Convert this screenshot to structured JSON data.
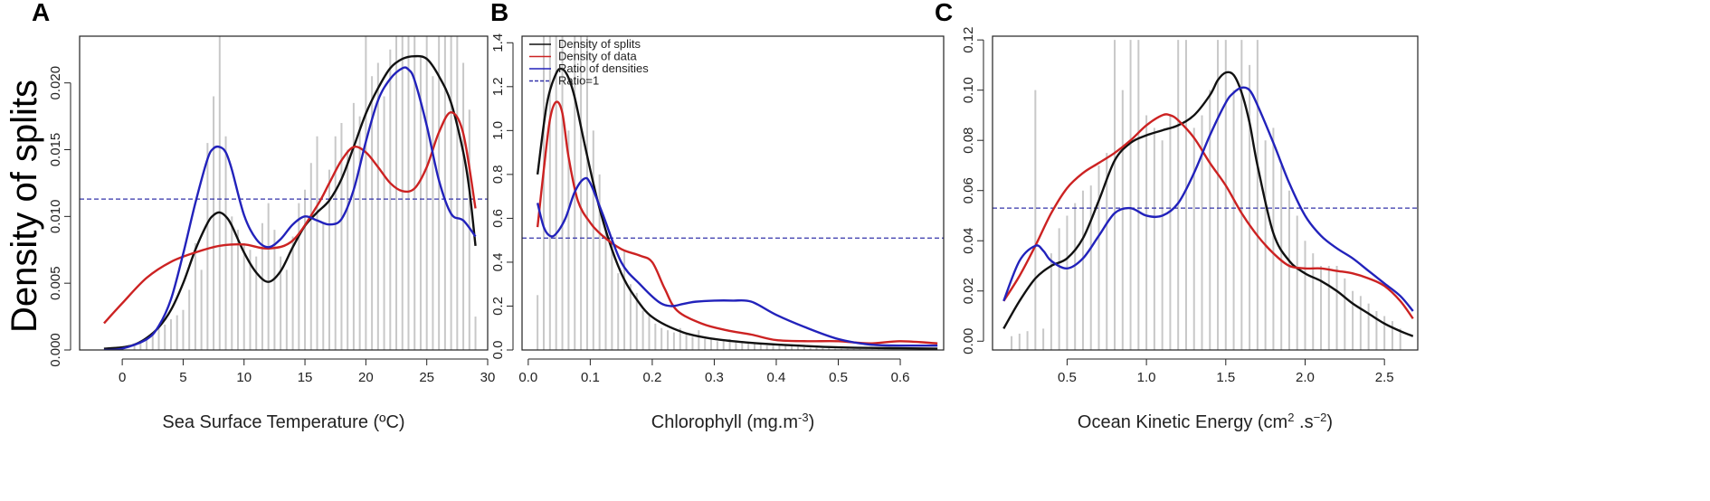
{
  "figure": {
    "ylabel": "Density of splits"
  },
  "colors": {
    "splits": "#111111",
    "data": "#cc2222",
    "ratio": "#2222bb",
    "ref": "#3333aa",
    "hist": "#c8c8c8"
  },
  "chart_data": [
    {
      "type": "line",
      "letter": "A",
      "title": "",
      "xlabel": "Sea Surface Temperature (ºC)",
      "ylabel": "Density of splits",
      "xlim": [
        -3.5,
        30
      ],
      "ylim": [
        0,
        0.0235
      ],
      "xticks": [
        0,
        5,
        10,
        15,
        20,
        25,
        30
      ],
      "xtick_labels": [
        "0",
        "5",
        "10",
        "15",
        "20",
        "25",
        "30"
      ],
      "yticks": [
        0,
        0.005,
        0.01,
        0.015,
        0.02
      ],
      "ytick_labels": [
        "0.000",
        "0.005",
        "0.010",
        "0.015",
        "0.020"
      ],
      "ratio_one_line": 0.0113,
      "histogram": {
        "x": [
          1,
          1.5,
          2,
          2.5,
          3,
          3.5,
          4,
          4.5,
          5,
          5.5,
          6,
          6.5,
          7,
          7.5,
          8,
          8.5,
          9,
          9.5,
          10,
          10.5,
          11,
          11.5,
          12,
          12.5,
          13,
          13.5,
          14,
          14.5,
          15,
          15.5,
          16,
          16.5,
          17,
          17.5,
          18,
          18.5,
          19,
          19.5,
          20,
          20.5,
          21,
          21.5,
          22,
          22.5,
          23,
          23.5,
          24,
          24.5,
          25,
          25.5,
          26,
          26.5,
          27,
          27.5,
          28,
          28.5,
          29
        ],
        "heights": [
          0.0005,
          0.0007,
          0.0009,
          0.0012,
          0.0016,
          0.0019,
          0.0023,
          0.0026,
          0.003,
          0.0045,
          0.008,
          0.006,
          0.0155,
          0.019,
          0.025,
          0.016,
          0.01,
          0.009,
          0.008,
          0.0075,
          0.007,
          0.0095,
          0.011,
          0.009,
          0.007,
          0.006,
          0.0085,
          0.011,
          0.012,
          0.014,
          0.016,
          0.0095,
          0.0135,
          0.016,
          0.017,
          0.015,
          0.0185,
          0.0175,
          0.025,
          0.0205,
          0.0215,
          0.019,
          0.0225,
          0.025,
          0.025,
          0.025,
          0.025,
          0.022,
          0.0235,
          0.0205,
          0.025,
          0.025,
          0.025,
          0.024,
          0.0215,
          0.018,
          0.0025
        ]
      },
      "series": [
        {
          "name": "Density of splits",
          "color": "#111111",
          "x": [
            -1.5,
            0,
            1,
            2,
            3,
            4,
            5,
            6,
            7,
            7.5,
            8,
            8.5,
            9,
            10,
            11,
            12,
            13,
            14,
            15,
            16,
            17,
            18,
            19,
            20,
            21,
            22,
            23,
            24,
            25,
            26,
            27,
            28,
            28.5,
            29
          ],
          "y": [
            0.0001,
            0.0002,
            0.0004,
            0.0009,
            0.0017,
            0.003,
            0.005,
            0.0075,
            0.0095,
            0.0101,
            0.0103,
            0.01,
            0.0093,
            0.0073,
            0.0058,
            0.0051,
            0.0059,
            0.0077,
            0.0093,
            0.0103,
            0.0112,
            0.0128,
            0.0152,
            0.0177,
            0.0196,
            0.0211,
            0.0218,
            0.022,
            0.0218,
            0.0205,
            0.0185,
            0.0148,
            0.012,
            0.0078
          ]
        },
        {
          "name": "Density of data",
          "color": "#cc2222",
          "x": [
            -1.5,
            0,
            2,
            4,
            6,
            8,
            10,
            12,
            14,
            16,
            17,
            18,
            19,
            20,
            21,
            22,
            23,
            24,
            25,
            26,
            27,
            28,
            29
          ],
          "y": [
            0.002,
            0.0035,
            0.0054,
            0.0066,
            0.0073,
            0.0078,
            0.0079,
            0.0076,
            0.0082,
            0.0108,
            0.0125,
            0.0142,
            0.0152,
            0.0148,
            0.0137,
            0.0125,
            0.0119,
            0.0121,
            0.0137,
            0.0163,
            0.0178,
            0.0162,
            0.0106
          ]
        },
        {
          "name": "Ratio of densities",
          "color": "#2222bb",
          "x": [
            -1.5,
            0,
            2,
            3,
            4,
            5,
            6,
            7,
            7.5,
            8,
            8.5,
            9,
            10,
            11,
            12,
            13,
            14,
            15,
            16,
            17,
            18,
            19,
            20,
            21,
            22,
            23,
            23.5,
            24,
            25,
            26,
            27,
            28,
            29
          ],
          "y": [
            0,
            0.0001,
            0.0008,
            0.0018,
            0.0038,
            0.0072,
            0.011,
            0.0143,
            0.0151,
            0.0152,
            0.0148,
            0.0135,
            0.0101,
            0.0083,
            0.0077,
            0.0083,
            0.0094,
            0.01,
            0.0097,
            0.0094,
            0.0098,
            0.012,
            0.0156,
            0.0187,
            0.0203,
            0.0211,
            0.021,
            0.0202,
            0.0168,
            0.0127,
            0.0102,
            0.0097,
            0.0085
          ]
        }
      ]
    },
    {
      "type": "line",
      "letter": "B",
      "title": "",
      "xlabel": "Chlorophyll (mg.m",
      "xlabel_sup": "-3",
      "xlabel_end": ")",
      "ylabel": "",
      "xlim": [
        -0.01,
        0.67
      ],
      "ylim": [
        0,
        1.43
      ],
      "xticks": [
        0,
        0.1,
        0.2,
        0.3,
        0.4,
        0.5,
        0.6
      ],
      "xtick_labels": [
        "0.0",
        "0.1",
        "0.2",
        "0.3",
        "0.4",
        "0.5",
        "0.6"
      ],
      "yticks": [
        0,
        0.2,
        0.4,
        0.6,
        0.8,
        1.0,
        1.2,
        1.4
      ],
      "ytick_labels": [
        "0.0",
        "0.2",
        "0.4",
        "0.6",
        "0.8",
        "1.0",
        "1.2",
        "1.4"
      ],
      "ratio_one_line": 0.51,
      "legend": {
        "position": "top-left",
        "entries": [
          {
            "label": "Density of splits",
            "color": "#111111",
            "style": "solid"
          },
          {
            "label": "Density of data",
            "color": "#cc2222",
            "style": "solid"
          },
          {
            "label": "Ratio of densities",
            "color": "#2222bb",
            "style": "solid"
          },
          {
            "label": "Ratio=1",
            "color": "#3333aa",
            "style": "dashed"
          }
        ]
      },
      "histogram": {
        "x": [
          0.015,
          0.025,
          0.035,
          0.045,
          0.055,
          0.065,
          0.075,
          0.085,
          0.095,
          0.105,
          0.115,
          0.125,
          0.135,
          0.145,
          0.155,
          0.165,
          0.175,
          0.185,
          0.195,
          0.205,
          0.215,
          0.225,
          0.235,
          0.245,
          0.255,
          0.265,
          0.275,
          0.285,
          0.295,
          0.305,
          0.315,
          0.325,
          0.335,
          0.345,
          0.355,
          0.365,
          0.375,
          0.385,
          0.395,
          0.405,
          0.415,
          0.425,
          0.435,
          0.445,
          0.455,
          0.465,
          0.475,
          0.485,
          0.495,
          0.505,
          0.515,
          0.525,
          0.535,
          0.545,
          0.555,
          0.565,
          0.575,
          0.585,
          0.595,
          0.605,
          0.615,
          0.625,
          0.635,
          0.645,
          0.655
        ],
        "heights": [
          0.25,
          1.43,
          1.43,
          1.43,
          1.43,
          1.0,
          1.43,
          1.43,
          1.43,
          1.0,
          0.8,
          0.55,
          0.5,
          0.35,
          0.45,
          0.3,
          0.26,
          0.18,
          0.16,
          0.12,
          0.1,
          0.09,
          0.08,
          0.1,
          0.07,
          0.06,
          0.09,
          0.05,
          0.05,
          0.04,
          0.04,
          0.05,
          0.035,
          0.04,
          0.03,
          0.03,
          0.025,
          0.02,
          0.02,
          0.02,
          0.018,
          0.016,
          0.015,
          0.012,
          0.01,
          0.01,
          0.008,
          0.008,
          0.006,
          0.005,
          0.005,
          0.004,
          0.004,
          0.003,
          0.003,
          0.003,
          0.003,
          0.002,
          0.002,
          0.002,
          0.002,
          0.002,
          0.002,
          0.002,
          0.002
        ]
      },
      "series": [
        {
          "name": "Density of splits",
          "color": "#111111",
          "x": [
            0.015,
            0.03,
            0.045,
            0.055,
            0.065,
            0.075,
            0.09,
            0.11,
            0.13,
            0.15,
            0.17,
            0.2,
            0.25,
            0.3,
            0.35,
            0.4,
            0.5,
            0.6,
            0.66
          ],
          "y": [
            0.8,
            1.12,
            1.26,
            1.28,
            1.24,
            1.15,
            0.95,
            0.7,
            0.5,
            0.35,
            0.25,
            0.15,
            0.08,
            0.05,
            0.035,
            0.025,
            0.012,
            0.008,
            0.006
          ]
        },
        {
          "name": "Density of data",
          "color": "#cc2222",
          "x": [
            0.015,
            0.025,
            0.035,
            0.045,
            0.055,
            0.065,
            0.08,
            0.1,
            0.12,
            0.15,
            0.18,
            0.2,
            0.22,
            0.24,
            0.28,
            0.32,
            0.36,
            0.4,
            0.45,
            0.5,
            0.55,
            0.6,
            0.66
          ],
          "y": [
            0.56,
            0.82,
            1.05,
            1.13,
            1.08,
            0.88,
            0.68,
            0.58,
            0.52,
            0.46,
            0.43,
            0.4,
            0.28,
            0.18,
            0.12,
            0.09,
            0.07,
            0.045,
            0.04,
            0.04,
            0.03,
            0.04,
            0.03
          ]
        },
        {
          "name": "Ratio of densities",
          "color": "#2222bb",
          "x": [
            0.015,
            0.025,
            0.035,
            0.045,
            0.06,
            0.075,
            0.09,
            0.1,
            0.12,
            0.15,
            0.18,
            0.21,
            0.23,
            0.25,
            0.27,
            0.3,
            0.33,
            0.36,
            0.4,
            0.45,
            0.5,
            0.55,
            0.6,
            0.66
          ],
          "y": [
            0.67,
            0.56,
            0.52,
            0.53,
            0.6,
            0.72,
            0.78,
            0.76,
            0.62,
            0.4,
            0.3,
            0.22,
            0.2,
            0.21,
            0.22,
            0.225,
            0.225,
            0.22,
            0.16,
            0.1,
            0.05,
            0.025,
            0.02,
            0.02
          ]
        }
      ]
    },
    {
      "type": "line",
      "letter": "C",
      "title": "",
      "xlabel": "Ocean Kinetic Energy (cm",
      "xlabel_sup": "2",
      "xlabel_mid": " .s",
      "xlabel_sup2": "−2",
      "xlabel_end": ")",
      "ylabel": "",
      "xlim": [
        0.03,
        2.71
      ],
      "ylim": [
        -0.0035,
        0.1215
      ],
      "xticks": [
        0.5,
        1.0,
        1.5,
        2.0,
        2.5
      ],
      "xtick_labels": [
        "0.5",
        "1.0",
        "1.5",
        "2.0",
        "2.5"
      ],
      "yticks": [
        0,
        0.02,
        0.04,
        0.06,
        0.08,
        0.1,
        0.12
      ],
      "ytick_labels": [
        "0.00",
        "0.02",
        "0.04",
        "0.06",
        "0.08",
        "0.10",
        "0.12"
      ],
      "ratio_one_line": 0.053,
      "histogram": {
        "x": [
          0.15,
          0.2,
          0.25,
          0.3,
          0.35,
          0.4,
          0.45,
          0.5,
          0.55,
          0.6,
          0.65,
          0.7,
          0.75,
          0.8,
          0.85,
          0.9,
          0.95,
          1.0,
          1.05,
          1.1,
          1.15,
          1.2,
          1.25,
          1.3,
          1.35,
          1.4,
          1.45,
          1.5,
          1.55,
          1.6,
          1.65,
          1.7,
          1.75,
          1.8,
          1.85,
          1.9,
          1.95,
          2.0,
          2.05,
          2.1,
          2.15,
          2.2,
          2.25,
          2.3,
          2.35,
          2.4,
          2.45,
          2.5,
          2.55,
          2.6
        ],
        "heights": [
          0.002,
          0.003,
          0.004,
          0.1,
          0.005,
          0.035,
          0.045,
          0.05,
          0.055,
          0.06,
          0.062,
          0.07,
          0.075,
          0.12,
          0.1,
          0.12,
          0.12,
          0.09,
          0.085,
          0.08,
          0.09,
          0.12,
          0.12,
          0.085,
          0.09,
          0.1,
          0.12,
          0.12,
          0.1,
          0.12,
          0.11,
          0.12,
          0.08,
          0.085,
          0.07,
          0.06,
          0.05,
          0.04,
          0.035,
          0.03,
          0.03,
          0.03,
          0.025,
          0.02,
          0.018,
          0.015,
          0.012,
          0.01,
          0.008,
          0.005
        ]
      },
      "series": [
        {
          "name": "Density of splits",
          "color": "#111111",
          "x": [
            0.1,
            0.2,
            0.3,
            0.4,
            0.5,
            0.6,
            0.7,
            0.8,
            0.9,
            1.0,
            1.1,
            1.2,
            1.3,
            1.4,
            1.45,
            1.5,
            1.55,
            1.6,
            1.65,
            1.7,
            1.8,
            1.9,
            2.0,
            2.1,
            2.2,
            2.3,
            2.4,
            2.5,
            2.6,
            2.68
          ],
          "y": [
            0.005,
            0.016,
            0.025,
            0.03,
            0.033,
            0.041,
            0.056,
            0.072,
            0.079,
            0.082,
            0.084,
            0.086,
            0.09,
            0.098,
            0.104,
            0.107,
            0.106,
            0.099,
            0.087,
            0.07,
            0.043,
            0.032,
            0.027,
            0.024,
            0.02,
            0.015,
            0.011,
            0.007,
            0.004,
            0.002
          ]
        },
        {
          "name": "Density of data",
          "color": "#cc2222",
          "x": [
            0.1,
            0.2,
            0.3,
            0.4,
            0.5,
            0.6,
            0.7,
            0.8,
            0.9,
            1.0,
            1.1,
            1.15,
            1.2,
            1.3,
            1.4,
            1.5,
            1.6,
            1.7,
            1.8,
            1.9,
            2.0,
            2.1,
            2.2,
            2.3,
            2.4,
            2.5,
            2.6,
            2.68
          ],
          "y": [
            0.016,
            0.026,
            0.038,
            0.051,
            0.061,
            0.067,
            0.071,
            0.075,
            0.08,
            0.086,
            0.09,
            0.09,
            0.088,
            0.081,
            0.071,
            0.062,
            0.051,
            0.042,
            0.035,
            0.03,
            0.029,
            0.029,
            0.028,
            0.027,
            0.025,
            0.022,
            0.016,
            0.009
          ]
        },
        {
          "name": "Ratio of densities",
          "color": "#2222bb",
          "x": [
            0.1,
            0.2,
            0.3,
            0.35,
            0.4,
            0.5,
            0.6,
            0.7,
            0.8,
            0.9,
            1.0,
            1.1,
            1.2,
            1.3,
            1.4,
            1.5,
            1.55,
            1.6,
            1.65,
            1.7,
            1.8,
            1.9,
            2.0,
            2.1,
            2.2,
            2.3,
            2.4,
            2.5,
            2.6,
            2.68
          ],
          "y": [
            0.016,
            0.032,
            0.038,
            0.036,
            0.032,
            0.029,
            0.033,
            0.042,
            0.051,
            0.053,
            0.05,
            0.05,
            0.055,
            0.067,
            0.082,
            0.095,
            0.099,
            0.101,
            0.1,
            0.094,
            0.079,
            0.063,
            0.05,
            0.042,
            0.037,
            0.033,
            0.028,
            0.023,
            0.018,
            0.012
          ]
        }
      ]
    }
  ]
}
